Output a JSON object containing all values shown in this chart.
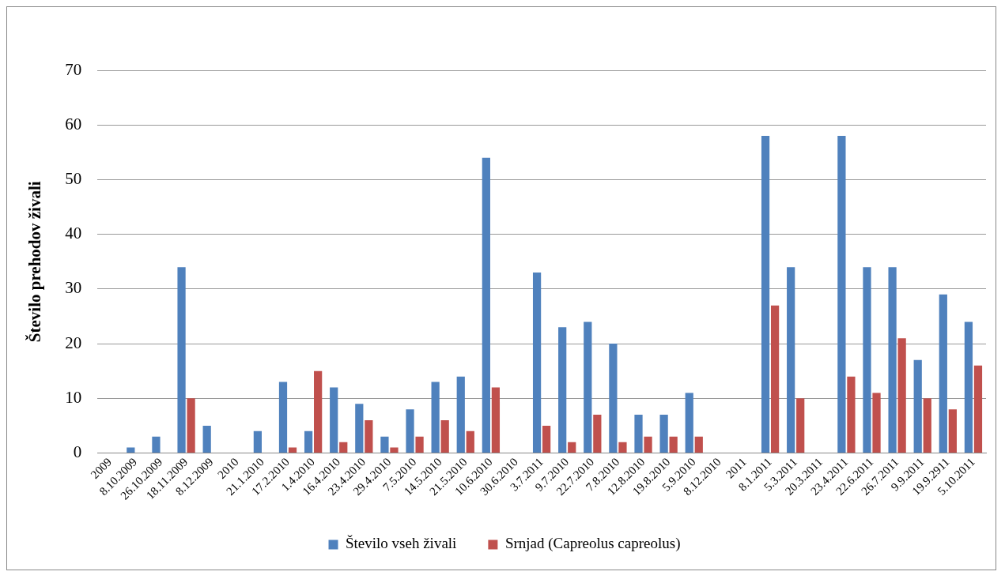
{
  "chart_data": {
    "type": "bar",
    "ylabel": "Število prehodov živali",
    "categories": [
      "2009",
      "8.10.2009",
      "26.10.2009",
      "18.11.2009",
      "8.12.2009",
      "2010",
      "21.1.2010",
      "17.2.2010",
      "1.4.2010",
      "16.4.2010",
      "23.4.2010",
      "29.4.2010",
      "7.5.2010",
      "14.5.2010",
      "21.5.2010",
      "10.6.2010",
      "30.6.2010",
      "3.7.2011",
      "9.7.2010",
      "22.7.2010",
      "7.8.2010",
      "12.8.2010",
      "19.8.2010",
      "5.9.2010",
      "8.12.2010",
      "2011",
      "8.1.2011",
      "5.3.2011",
      "20.3.2011",
      "23.4.2011",
      "22.6.2011",
      "26.7.2011",
      "9.9.2011",
      "19.9.2911",
      "5.10.2011"
    ],
    "series": [
      {
        "name": "Število vseh živali",
        "color": "#4f81bd",
        "values": [
          null,
          1,
          3,
          34,
          5,
          null,
          4,
          13,
          4,
          12,
          9,
          3,
          8,
          13,
          14,
          54,
          null,
          33,
          23,
          24,
          20,
          7,
          7,
          11,
          null,
          null,
          58,
          34,
          null,
          58,
          34,
          34,
          17,
          29,
          24
        ]
      },
      {
        "name": "Srnjad (Capreolus capreolus)",
        "color": "#c0504d",
        "values": [
          null,
          null,
          null,
          10,
          null,
          null,
          null,
          1,
          15,
          2,
          6,
          1,
          3,
          6,
          4,
          12,
          null,
          5,
          2,
          7,
          2,
          3,
          3,
          3,
          null,
          null,
          27,
          10,
          null,
          14,
          11,
          21,
          10,
          8,
          16
        ]
      }
    ],
    "ylim": [
      0,
      70
    ],
    "yticks": [
      0,
      10,
      20,
      30,
      40,
      50,
      60,
      70
    ],
    "grid": "y",
    "legend": "bottom"
  }
}
